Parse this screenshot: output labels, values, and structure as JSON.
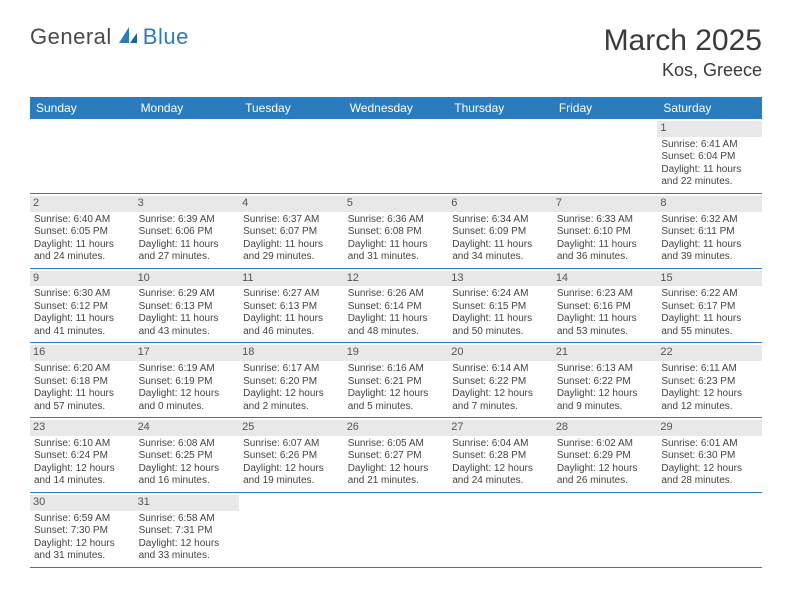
{
  "brand": {
    "part1": "General",
    "part2": "Blue"
  },
  "title": "March 2025",
  "location": "Kos, Greece",
  "colors": {
    "header_bg": "#2b7bbf",
    "header_text": "#ffffff",
    "day_bar_bg": "#e8e8e8",
    "row_border": "#2b7bbf",
    "body_text": "#444444",
    "title_text": "#3a3a3a"
  },
  "weekdays": [
    "Sunday",
    "Monday",
    "Tuesday",
    "Wednesday",
    "Thursday",
    "Friday",
    "Saturday"
  ],
  "weeks": [
    [
      {
        "day": "",
        "lines": []
      },
      {
        "day": "",
        "lines": []
      },
      {
        "day": "",
        "lines": []
      },
      {
        "day": "",
        "lines": []
      },
      {
        "day": "",
        "lines": []
      },
      {
        "day": "",
        "lines": []
      },
      {
        "day": "1",
        "lines": [
          "Sunrise: 6:41 AM",
          "Sunset: 6:04 PM",
          "Daylight: 11 hours",
          "and 22 minutes."
        ]
      }
    ],
    [
      {
        "day": "2",
        "lines": [
          "Sunrise: 6:40 AM",
          "Sunset: 6:05 PM",
          "Daylight: 11 hours",
          "and 24 minutes."
        ]
      },
      {
        "day": "3",
        "lines": [
          "Sunrise: 6:39 AM",
          "Sunset: 6:06 PM",
          "Daylight: 11 hours",
          "and 27 minutes."
        ]
      },
      {
        "day": "4",
        "lines": [
          "Sunrise: 6:37 AM",
          "Sunset: 6:07 PM",
          "Daylight: 11 hours",
          "and 29 minutes."
        ]
      },
      {
        "day": "5",
        "lines": [
          "Sunrise: 6:36 AM",
          "Sunset: 6:08 PM",
          "Daylight: 11 hours",
          "and 31 minutes."
        ]
      },
      {
        "day": "6",
        "lines": [
          "Sunrise: 6:34 AM",
          "Sunset: 6:09 PM",
          "Daylight: 11 hours",
          "and 34 minutes."
        ]
      },
      {
        "day": "7",
        "lines": [
          "Sunrise: 6:33 AM",
          "Sunset: 6:10 PM",
          "Daylight: 11 hours",
          "and 36 minutes."
        ]
      },
      {
        "day": "8",
        "lines": [
          "Sunrise: 6:32 AM",
          "Sunset: 6:11 PM",
          "Daylight: 11 hours",
          "and 39 minutes."
        ]
      }
    ],
    [
      {
        "day": "9",
        "lines": [
          "Sunrise: 6:30 AM",
          "Sunset: 6:12 PM",
          "Daylight: 11 hours",
          "and 41 minutes."
        ]
      },
      {
        "day": "10",
        "lines": [
          "Sunrise: 6:29 AM",
          "Sunset: 6:13 PM",
          "Daylight: 11 hours",
          "and 43 minutes."
        ]
      },
      {
        "day": "11",
        "lines": [
          "Sunrise: 6:27 AM",
          "Sunset: 6:13 PM",
          "Daylight: 11 hours",
          "and 46 minutes."
        ]
      },
      {
        "day": "12",
        "lines": [
          "Sunrise: 6:26 AM",
          "Sunset: 6:14 PM",
          "Daylight: 11 hours",
          "and 48 minutes."
        ]
      },
      {
        "day": "13",
        "lines": [
          "Sunrise: 6:24 AM",
          "Sunset: 6:15 PM",
          "Daylight: 11 hours",
          "and 50 minutes."
        ]
      },
      {
        "day": "14",
        "lines": [
          "Sunrise: 6:23 AM",
          "Sunset: 6:16 PM",
          "Daylight: 11 hours",
          "and 53 minutes."
        ]
      },
      {
        "day": "15",
        "lines": [
          "Sunrise: 6:22 AM",
          "Sunset: 6:17 PM",
          "Daylight: 11 hours",
          "and 55 minutes."
        ]
      }
    ],
    [
      {
        "day": "16",
        "lines": [
          "Sunrise: 6:20 AM",
          "Sunset: 6:18 PM",
          "Daylight: 11 hours",
          "and 57 minutes."
        ]
      },
      {
        "day": "17",
        "lines": [
          "Sunrise: 6:19 AM",
          "Sunset: 6:19 PM",
          "Daylight: 12 hours",
          "and 0 minutes."
        ]
      },
      {
        "day": "18",
        "lines": [
          "Sunrise: 6:17 AM",
          "Sunset: 6:20 PM",
          "Daylight: 12 hours",
          "and 2 minutes."
        ]
      },
      {
        "day": "19",
        "lines": [
          "Sunrise: 6:16 AM",
          "Sunset: 6:21 PM",
          "Daylight: 12 hours",
          "and 5 minutes."
        ]
      },
      {
        "day": "20",
        "lines": [
          "Sunrise: 6:14 AM",
          "Sunset: 6:22 PM",
          "Daylight: 12 hours",
          "and 7 minutes."
        ]
      },
      {
        "day": "21",
        "lines": [
          "Sunrise: 6:13 AM",
          "Sunset: 6:22 PM",
          "Daylight: 12 hours",
          "and 9 minutes."
        ]
      },
      {
        "day": "22",
        "lines": [
          "Sunrise: 6:11 AM",
          "Sunset: 6:23 PM",
          "Daylight: 12 hours",
          "and 12 minutes."
        ]
      }
    ],
    [
      {
        "day": "23",
        "lines": [
          "Sunrise: 6:10 AM",
          "Sunset: 6:24 PM",
          "Daylight: 12 hours",
          "and 14 minutes."
        ]
      },
      {
        "day": "24",
        "lines": [
          "Sunrise: 6:08 AM",
          "Sunset: 6:25 PM",
          "Daylight: 12 hours",
          "and 16 minutes."
        ]
      },
      {
        "day": "25",
        "lines": [
          "Sunrise: 6:07 AM",
          "Sunset: 6:26 PM",
          "Daylight: 12 hours",
          "and 19 minutes."
        ]
      },
      {
        "day": "26",
        "lines": [
          "Sunrise: 6:05 AM",
          "Sunset: 6:27 PM",
          "Daylight: 12 hours",
          "and 21 minutes."
        ]
      },
      {
        "day": "27",
        "lines": [
          "Sunrise: 6:04 AM",
          "Sunset: 6:28 PM",
          "Daylight: 12 hours",
          "and 24 minutes."
        ]
      },
      {
        "day": "28",
        "lines": [
          "Sunrise: 6:02 AM",
          "Sunset: 6:29 PM",
          "Daylight: 12 hours",
          "and 26 minutes."
        ]
      },
      {
        "day": "29",
        "lines": [
          "Sunrise: 6:01 AM",
          "Sunset: 6:30 PM",
          "Daylight: 12 hours",
          "and 28 minutes."
        ]
      }
    ],
    [
      {
        "day": "30",
        "lines": [
          "Sunrise: 6:59 AM",
          "Sunset: 7:30 PM",
          "Daylight: 12 hours",
          "and 31 minutes."
        ]
      },
      {
        "day": "31",
        "lines": [
          "Sunrise: 6:58 AM",
          "Sunset: 7:31 PM",
          "Daylight: 12 hours",
          "and 33 minutes."
        ]
      },
      {
        "day": "",
        "lines": []
      },
      {
        "day": "",
        "lines": []
      },
      {
        "day": "",
        "lines": []
      },
      {
        "day": "",
        "lines": []
      },
      {
        "day": "",
        "lines": []
      }
    ]
  ]
}
